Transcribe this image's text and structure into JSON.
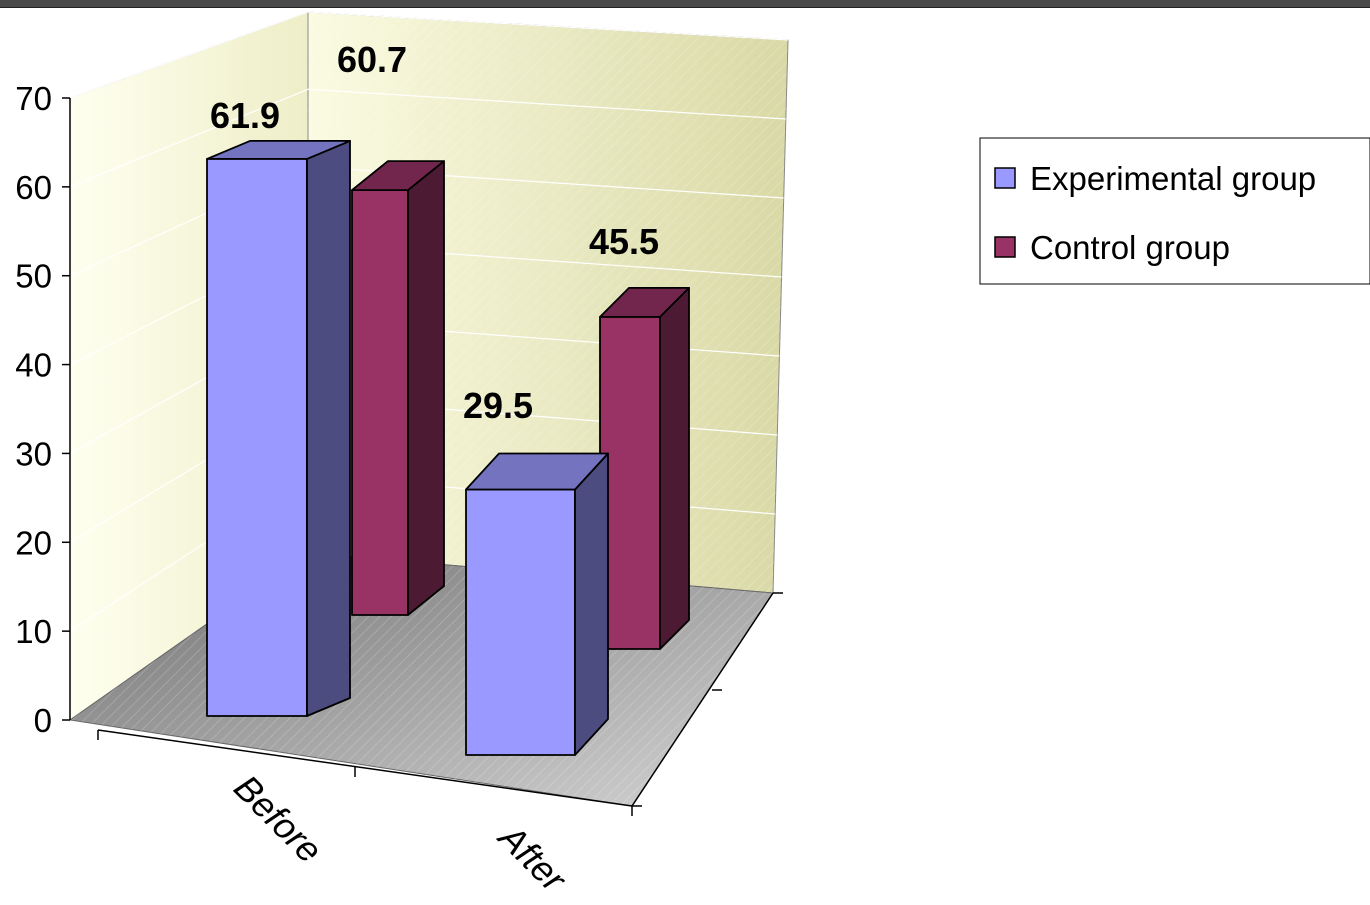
{
  "chart_data": {
    "type": "bar",
    "categories": [
      "Before",
      "After"
    ],
    "series": [
      {
        "name": "Experimental group",
        "values": [
          61.9,
          29.5
        ],
        "color": "#9999ff"
      },
      {
        "name": "Control group",
        "values": [
          60.7,
          45.5
        ],
        "color": "#993366"
      }
    ],
    "yticks": [
      "0",
      "10",
      "20",
      "30",
      "40",
      "50",
      "60",
      "70"
    ],
    "ylim": [
      0,
      70
    ],
    "grid": true,
    "legend": "right",
    "colors": {
      "back_wall": "#e8e8b8",
      "floor": "#a8a8a8",
      "experimental_front": "#9999ff",
      "experimental_side": "#4c4c80",
      "experimental_top": "#7373c0",
      "control_front": "#993366",
      "control_side": "#4d1a33",
      "control_top": "#73264d"
    }
  }
}
